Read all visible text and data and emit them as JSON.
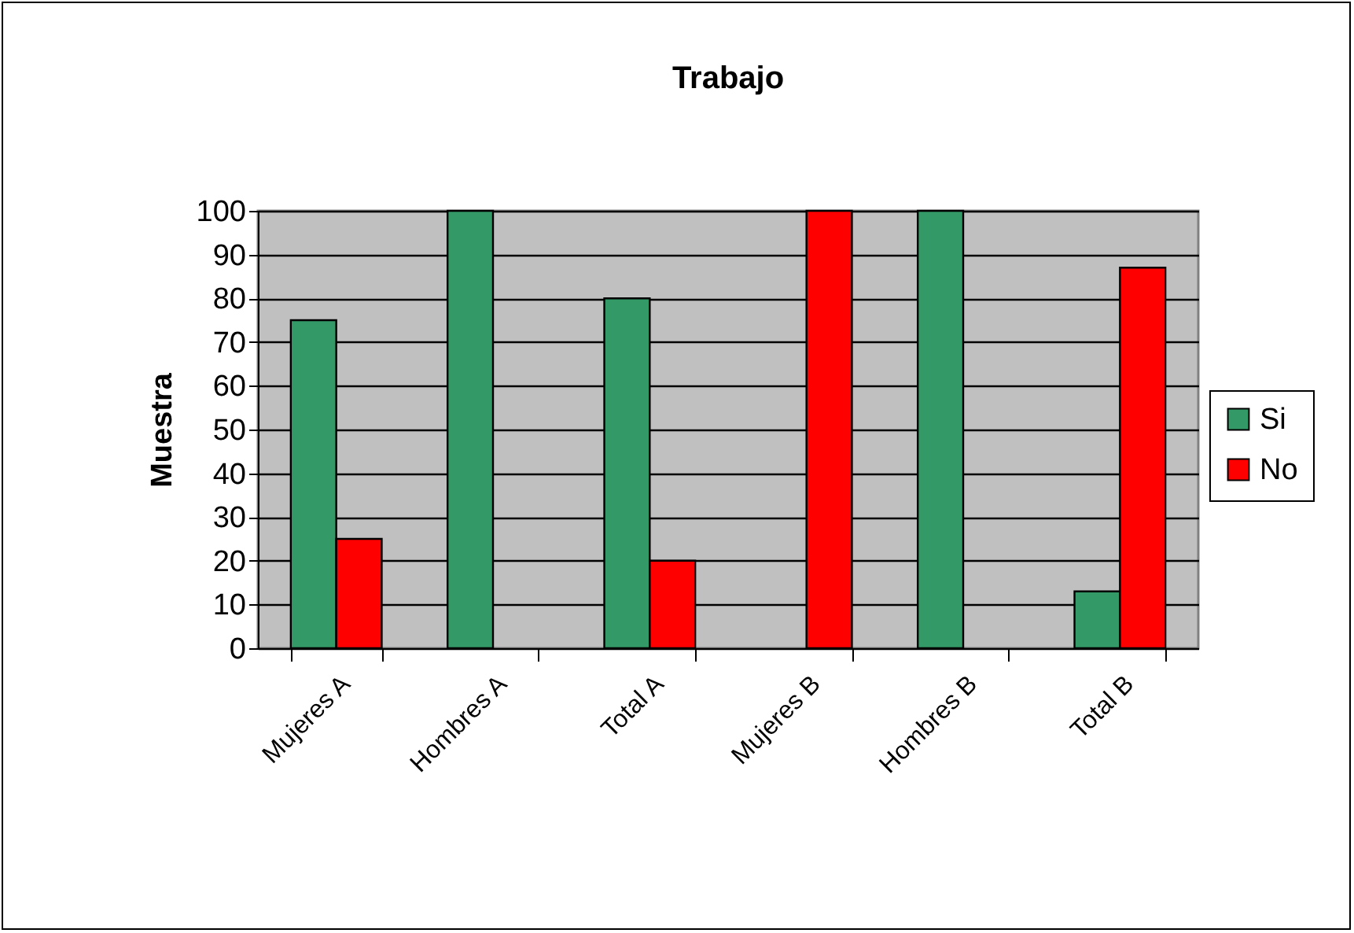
{
  "chart_data": {
    "type": "bar",
    "title": "Trabajo",
    "ylabel": "Muestra",
    "categories": [
      "Mujeres A",
      "Hombres A",
      "Total A",
      "Mujeres B",
      "Hombres B",
      "Total B"
    ],
    "series": [
      {
        "name": "Si",
        "color": "#339966",
        "values": [
          75,
          100,
          80,
          null,
          100,
          13
        ]
      },
      {
        "name": "No",
        "color": "#ff0000",
        "values": [
          25,
          null,
          20,
          100,
          null,
          87
        ]
      }
    ],
    "ylim": [
      0,
      100
    ],
    "yticks": [
      0,
      10,
      20,
      30,
      40,
      50,
      60,
      70,
      80,
      90,
      100
    ],
    "grid": "y",
    "legend": "right"
  }
}
